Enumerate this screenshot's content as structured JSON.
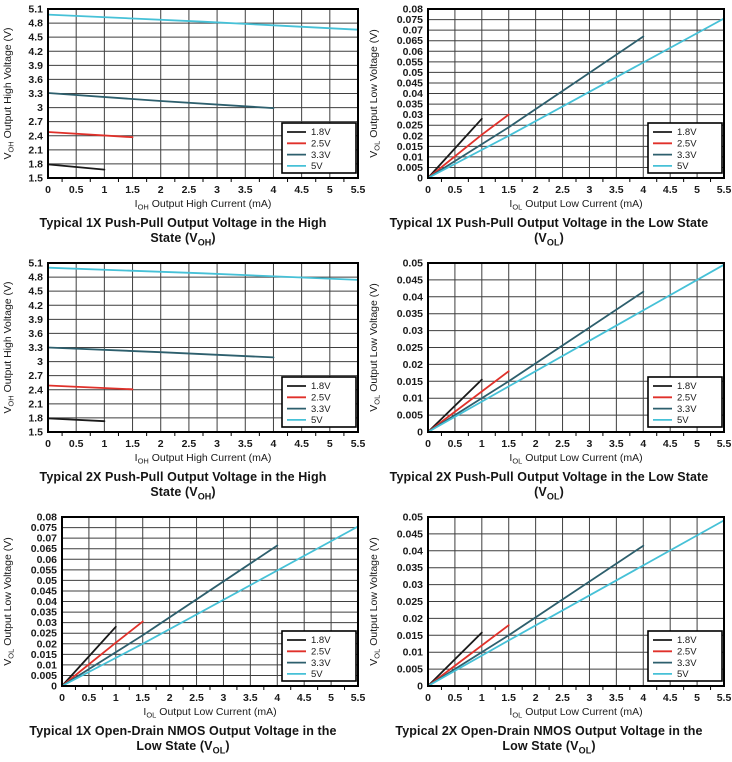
{
  "page": {
    "background": "#ffffff"
  },
  "colors": {
    "grid": "#3f3f3f",
    "frame": "#000000",
    "tick_text": "#1a1a1a",
    "title_text": "#141414",
    "legend_border": "#000000",
    "legend_bg": "#ffffff"
  },
  "legend": {
    "labels": [
      "1.8V",
      "2.5V",
      "3.3V",
      "5V"
    ],
    "position": "bottom-right"
  },
  "chart_data": [
    {
      "type": "line",
      "title_lines": [
        "Typical 1X Push-Pull Output Voltage in the High",
        "State (V~OH~)"
      ],
      "xlabel": "I~OH~ Output High Current (mA)",
      "ylabel": "V~OH~ Output High Voltage (V)",
      "xlim": [
        0,
        5.5
      ],
      "x_step": 0.5,
      "ylim": [
        1.5,
        5.1
      ],
      "y_step": 0.3,
      "grid": true,
      "series": [
        {
          "name": "1.8V",
          "color": "#1a1a1a",
          "points": [
            [
              0,
              1.79
            ],
            [
              1,
              1.68
            ]
          ]
        },
        {
          "name": "2.5V",
          "color": "#e0312a",
          "points": [
            [
              0,
              2.48
            ],
            [
              1.5,
              2.37
            ]
          ]
        },
        {
          "name": "3.3V",
          "color": "#2d5f6d",
          "points": [
            [
              0,
              3.31
            ],
            [
              2,
              3.14
            ],
            [
              4,
              2.99
            ]
          ]
        },
        {
          "name": "5V",
          "color": "#46c1d7",
          "points": [
            [
              0,
              4.98
            ],
            [
              2.75,
              4.83
            ],
            [
              5.5,
              4.66
            ]
          ]
        }
      ]
    },
    {
      "type": "line",
      "title_lines": [
        "Typical 1X Push-Pull Output Voltage in the Low State",
        "(V~OL~)"
      ],
      "xlabel": "I~OL~ Output Low Current (mA)",
      "ylabel": "V~OL~ Output Low Voltage (V)",
      "xlim": [
        0,
        5.5
      ],
      "x_step": 0.5,
      "ylim": [
        0,
        0.08
      ],
      "y_step": 0.005,
      "grid": true,
      "series": [
        {
          "name": "1.8V",
          "color": "#1a1a1a",
          "points": [
            [
              0,
              0
            ],
            [
              1,
              0.028
            ]
          ]
        },
        {
          "name": "2.5V",
          "color": "#e0312a",
          "points": [
            [
              0,
              0
            ],
            [
              1,
              0.0205
            ],
            [
              1.5,
              0.03
            ]
          ]
        },
        {
          "name": "3.3V",
          "color": "#2d5f6d",
          "points": [
            [
              0,
              0
            ],
            [
              1.5,
              0.024
            ],
            [
              4,
              0.067
            ]
          ]
        },
        {
          "name": "5V",
          "color": "#46c1d7",
          "points": [
            [
              0,
              0
            ],
            [
              1.5,
              0.02
            ],
            [
              5.5,
              0.0755
            ]
          ]
        }
      ]
    },
    {
      "type": "line",
      "title_lines": [
        "Typical 2X Push-Pull Output Voltage in the High",
        "State (V~OH~)"
      ],
      "xlabel": "I~OH~ Output High Current (mA)",
      "ylabel": "V~OH~ Output High Voltage (V)",
      "xlim": [
        0,
        5.5
      ],
      "x_step": 0.5,
      "ylim": [
        1.5,
        5.1
      ],
      "y_step": 0.3,
      "grid": true,
      "series": [
        {
          "name": "1.8V",
          "color": "#1a1a1a",
          "points": [
            [
              0,
              1.79
            ],
            [
              1,
              1.73
            ]
          ]
        },
        {
          "name": "2.5V",
          "color": "#e0312a",
          "points": [
            [
              0,
              2.49
            ],
            [
              1.5,
              2.41
            ]
          ]
        },
        {
          "name": "3.3V",
          "color": "#2d5f6d",
          "points": [
            [
              0,
              3.3
            ],
            [
              2,
              3.2
            ],
            [
              4,
              3.09
            ]
          ]
        },
        {
          "name": "5V",
          "color": "#46c1d7",
          "points": [
            [
              0,
              5.0
            ],
            [
              2.75,
              4.88
            ],
            [
              5.5,
              4.74
            ]
          ]
        }
      ]
    },
    {
      "type": "line",
      "title_lines": [
        "Typical 2X Push-Pull Output Voltage in the Low State",
        "(V~OL~)"
      ],
      "xlabel": "I~OL~ Output Low Current (mA)",
      "ylabel": "V~OL~ Output Low Voltage (V)",
      "xlim": [
        0,
        5.5
      ],
      "x_step": 0.5,
      "ylim": [
        0,
        0.05
      ],
      "y_step": 0.005,
      "grid": true,
      "series": [
        {
          "name": "1.8V",
          "color": "#1a1a1a",
          "points": [
            [
              0,
              0
            ],
            [
              1,
              0.0155
            ]
          ]
        },
        {
          "name": "2.5V",
          "color": "#e0312a",
          "points": [
            [
              0,
              0
            ],
            [
              1.5,
              0.018
            ]
          ]
        },
        {
          "name": "3.3V",
          "color": "#2d5f6d",
          "points": [
            [
              0,
              0
            ],
            [
              1.5,
              0.015
            ],
            [
              4,
              0.0415
            ]
          ]
        },
        {
          "name": "5V",
          "color": "#46c1d7",
          "points": [
            [
              0,
              0
            ],
            [
              1.5,
              0.0135
            ],
            [
              5.5,
              0.0495
            ]
          ]
        }
      ]
    },
    {
      "type": "line",
      "title_lines": [
        "Typical 1X Open-Drain NMOS Output Voltage in the",
        "Low State (V~OL~)"
      ],
      "xlabel": "I~OL~ Output Low Current (mA)",
      "ylabel": "V~OL~ Output Low Voltage (V)",
      "xlim": [
        0,
        5.5
      ],
      "x_step": 0.5,
      "ylim": [
        0,
        0.08
      ],
      "y_step": 0.005,
      "grid": true,
      "series": [
        {
          "name": "1.8V",
          "color": "#1a1a1a",
          "points": [
            [
              0,
              0
            ],
            [
              1,
              0.028
            ]
          ]
        },
        {
          "name": "2.5V",
          "color": "#e0312a",
          "points": [
            [
              0,
              0
            ],
            [
              1,
              0.0205
            ],
            [
              1.5,
              0.0305
            ]
          ]
        },
        {
          "name": "3.3V",
          "color": "#2d5f6d",
          "points": [
            [
              0,
              0
            ],
            [
              1.5,
              0.024
            ],
            [
              4,
              0.0665
            ]
          ]
        },
        {
          "name": "5V",
          "color": "#46c1d7",
          "points": [
            [
              0,
              0
            ],
            [
              1.5,
              0.02
            ],
            [
              5.5,
              0.0755
            ]
          ]
        }
      ]
    },
    {
      "type": "line",
      "title_lines": [
        "Typical 2X Open-Drain NMOS Output Voltage in the",
        "Low State (V~OL~)"
      ],
      "xlabel": "I~OL~ Output Low Current (mA)",
      "ylabel": "V~OL~ Output Low Voltage (V)",
      "xlim": [
        0,
        5.5
      ],
      "x_step": 0.5,
      "ylim": [
        0,
        0.05
      ],
      "y_step": 0.005,
      "grid": true,
      "series": [
        {
          "name": "1.8V",
          "color": "#1a1a1a",
          "points": [
            [
              0,
              0
            ],
            [
              1,
              0.0158
            ]
          ]
        },
        {
          "name": "2.5V",
          "color": "#e0312a",
          "points": [
            [
              0,
              0
            ],
            [
              1.5,
              0.018
            ]
          ]
        },
        {
          "name": "3.3V",
          "color": "#2d5f6d",
          "points": [
            [
              0,
              0
            ],
            [
              1.5,
              0.015
            ],
            [
              4,
              0.0415
            ]
          ]
        },
        {
          "name": "5V",
          "color": "#46c1d7",
          "points": [
            [
              0,
              0
            ],
            [
              1.5,
              0.0135
            ],
            [
              5.5,
              0.049
            ]
          ]
        }
      ]
    }
  ]
}
